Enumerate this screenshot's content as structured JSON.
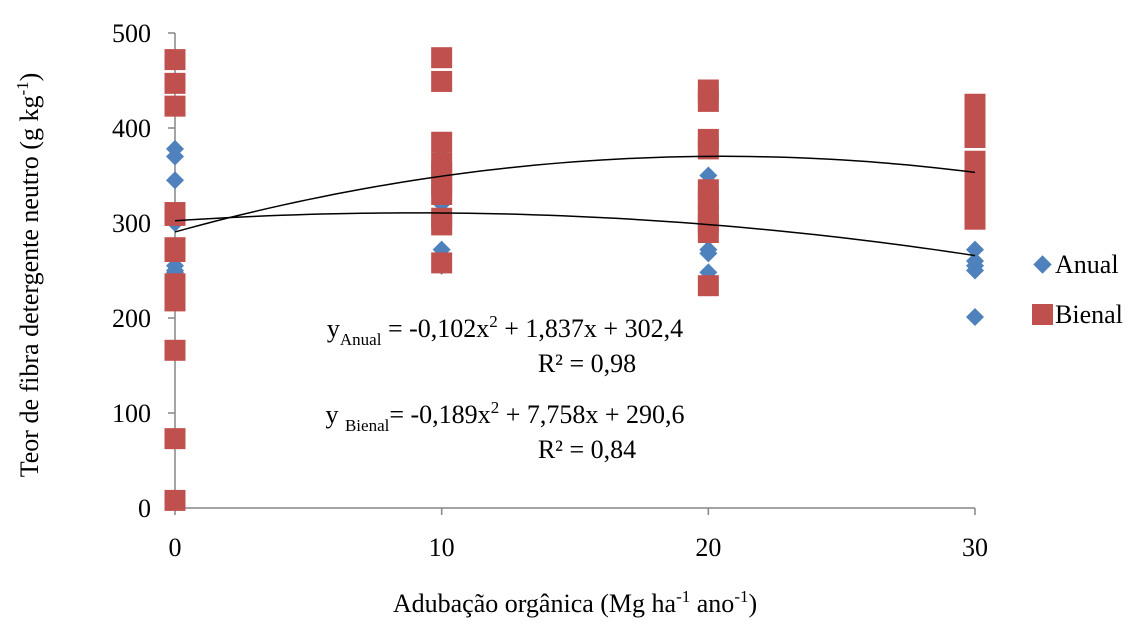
{
  "chart_data": {
    "type": "scatter",
    "xlabel": {
      "main": "Adubação orgânica (Mg ha",
      "sup1": "-1",
      "mid": " ano",
      "sup2": "-1",
      "end": ")"
    },
    "ylabel": {
      "main": "Teor de fibra detergente neutro (g kg",
      "sup": "-1",
      "end": ")"
    },
    "xlim": [
      0,
      30
    ],
    "ylim": [
      0,
      500
    ],
    "xticks": [
      "0",
      "10",
      "20",
      "30"
    ],
    "yticks": [
      "0",
      "100",
      "200",
      "300",
      "400",
      "500"
    ],
    "grid": false,
    "legend_position": "right",
    "series": [
      {
        "name": "Anual",
        "marker": "diamond",
        "color": "#4F81BD",
        "points": [
          [
            0,
            378
          ],
          [
            0,
            370
          ],
          [
            0,
            345
          ],
          [
            0,
            300
          ],
          [
            0,
            263
          ],
          [
            0,
            255
          ],
          [
            0,
            250
          ],
          [
            0,
            248
          ],
          [
            10,
            370
          ],
          [
            10,
            340
          ],
          [
            10,
            320
          ],
          [
            10,
            300
          ],
          [
            10,
            272
          ],
          [
            10,
            255
          ],
          [
            20,
            350
          ],
          [
            20,
            300
          ],
          [
            20,
            285
          ],
          [
            20,
            272
          ],
          [
            20,
            268
          ],
          [
            20,
            248
          ],
          [
            30,
            272
          ],
          [
            30,
            260
          ],
          [
            30,
            255
          ],
          [
            30,
            250
          ],
          [
            30,
            201
          ]
        ]
      },
      {
        "name": "Bienal",
        "marker": "square",
        "color": "#C0504D",
        "points": [
          [
            0,
            472
          ],
          [
            0,
            447
          ],
          [
            0,
            423
          ],
          [
            0,
            311
          ],
          [
            0,
            308
          ],
          [
            0,
            274
          ],
          [
            0,
            270
          ],
          [
            0,
            236
          ],
          [
            0,
            228
          ],
          [
            0,
            218
          ],
          [
            0,
            166
          ],
          [
            0,
            73
          ],
          [
            0,
            8
          ],
          [
            10,
            474
          ],
          [
            10,
            449
          ],
          [
            10,
            385
          ],
          [
            10,
            363
          ],
          [
            10,
            353
          ],
          [
            10,
            340
          ],
          [
            10,
            330
          ],
          [
            10,
            305
          ],
          [
            10,
            298
          ],
          [
            10,
            258
          ],
          [
            20,
            440
          ],
          [
            20,
            428
          ],
          [
            20,
            388
          ],
          [
            20,
            378
          ],
          [
            20,
            335
          ],
          [
            20,
            325
          ],
          [
            20,
            310
          ],
          [
            20,
            300
          ],
          [
            20,
            290
          ],
          [
            20,
            234
          ],
          [
            30,
            425
          ],
          [
            30,
            410
          ],
          [
            30,
            390
          ],
          [
            30,
            365
          ],
          [
            30,
            355
          ],
          [
            30,
            345
          ],
          [
            30,
            335
          ],
          [
            30,
            322
          ],
          [
            30,
            310
          ],
          [
            30,
            304
          ]
        ]
      }
    ],
    "trendlines": [
      {
        "series": "Anual",
        "coefficients": {
          "a": -0.102,
          "b": 1.837,
          "c": 302.4
        }
      },
      {
        "series": "Bienal",
        "coefficients": {
          "a": -0.189,
          "b": 7.758,
          "c": 290.6
        }
      }
    ],
    "annotations": {
      "anual_eq": {
        "y": "y",
        "sub": "Anual",
        "mid": " = -0,102x",
        "sup": "2",
        "end": " + 1,837x + 302,4"
      },
      "anual_r2": "R² = 0,98",
      "bienal_eq": {
        "y": "y ",
        "sub": "Bienal",
        "mid": "= -0,189x",
        "sup": "2",
        "end": " + 7,758x + 290,6"
      },
      "bienal_r2": "R² = 0,84"
    }
  }
}
